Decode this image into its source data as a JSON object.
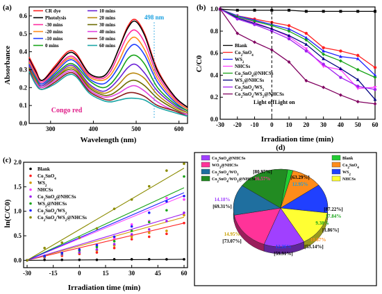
{
  "chart_data": [
    {
      "panel_label": "(a)",
      "type": "line",
      "ylabel": "Absorbance",
      "xlabel": "Wavelength (nm)",
      "xlim": [
        250,
        620
      ],
      "ylim": [
        0.0,
        0.65
      ],
      "xticks": [
        300,
        400,
        500,
        600
      ],
      "yticks": [
        0.0,
        0.1,
        0.2,
        0.3,
        0.4,
        0.5,
        0.6
      ],
      "annotations": [
        {
          "text": "498 nm"
        },
        {
          "text": "Congo red"
        }
      ],
      "legend_placement": "top-left, two columns",
      "series": [
        {
          "name": "CR dye",
          "color": "#ff1f1f",
          "values": [
            0.37,
            0.3,
            0.24,
            0.32,
            0.4,
            0.39,
            0.28,
            0.26,
            0.31,
            0.42,
            0.54,
            0.58,
            0.5,
            0.3,
            0.15,
            0.09
          ]
        },
        {
          "name": "Photolysis",
          "color": "#000000",
          "values": [
            0.36,
            0.29,
            0.24,
            0.31,
            0.39,
            0.38,
            0.28,
            0.26,
            0.31,
            0.42,
            0.53,
            0.57,
            0.49,
            0.29,
            0.15,
            0.09
          ]
        },
        {
          "name": "-30 mins",
          "color": "#ff2aa0",
          "values": [
            0.35,
            0.28,
            0.23,
            0.3,
            0.37,
            0.36,
            0.27,
            0.25,
            0.29,
            0.39,
            0.49,
            0.52,
            0.45,
            0.27,
            0.14,
            0.08
          ]
        },
        {
          "name": "-20 mins",
          "color": "#ff8c1a",
          "values": [
            0.34,
            0.27,
            0.22,
            0.29,
            0.36,
            0.35,
            0.26,
            0.24,
            0.27,
            0.35,
            0.45,
            0.48,
            0.41,
            0.25,
            0.13,
            0.08
          ]
        },
        {
          "name": "-10 mins",
          "color": "#1f3fff",
          "values": [
            0.33,
            0.26,
            0.22,
            0.28,
            0.35,
            0.34,
            0.25,
            0.22,
            0.25,
            0.32,
            0.41,
            0.44,
            0.38,
            0.23,
            0.12,
            0.07
          ]
        },
        {
          "name": "0 mins",
          "color": "#18a41a",
          "values": [
            0.32,
            0.25,
            0.21,
            0.27,
            0.33,
            0.32,
            0.24,
            0.2,
            0.22,
            0.28,
            0.36,
            0.38,
            0.33,
            0.2,
            0.11,
            0.07
          ]
        },
        {
          "name": "10 mins",
          "color": "#6a1fd6",
          "values": [
            0.32,
            0.24,
            0.21,
            0.26,
            0.32,
            0.31,
            0.22,
            0.18,
            0.2,
            0.25,
            0.31,
            0.33,
            0.28,
            0.18,
            0.1,
            0.06
          ]
        },
        {
          "name": "20 mins",
          "color": "#b8860b",
          "values": [
            0.31,
            0.24,
            0.2,
            0.25,
            0.31,
            0.3,
            0.21,
            0.17,
            0.18,
            0.22,
            0.27,
            0.28,
            0.25,
            0.16,
            0.09,
            0.06
          ]
        },
        {
          "name": "30 mins",
          "color": "#6b6b00",
          "values": [
            0.31,
            0.23,
            0.2,
            0.25,
            0.3,
            0.29,
            0.2,
            0.16,
            0.16,
            0.19,
            0.23,
            0.24,
            0.21,
            0.14,
            0.08,
            0.05
          ]
        },
        {
          "name": "40 mins",
          "color": "#e040e0",
          "values": [
            0.3,
            0.23,
            0.2,
            0.24,
            0.29,
            0.28,
            0.19,
            0.15,
            0.15,
            0.17,
            0.2,
            0.21,
            0.18,
            0.12,
            0.07,
            0.05
          ]
        },
        {
          "name": "50 mins",
          "color": "#8b1a1a",
          "values": [
            0.3,
            0.22,
            0.19,
            0.23,
            0.28,
            0.27,
            0.18,
            0.14,
            0.13,
            0.15,
            0.17,
            0.17,
            0.15,
            0.1,
            0.07,
            0.04
          ]
        },
        {
          "name": "60 mins",
          "color": "#1aa5a5",
          "values": [
            0.29,
            0.22,
            0.19,
            0.22,
            0.27,
            0.26,
            0.17,
            0.13,
            0.12,
            0.13,
            0.14,
            0.14,
            0.13,
            0.09,
            0.06,
            0.04
          ]
        }
      ],
      "x": [
        250,
        265,
        280,
        310,
        340,
        360,
        390,
        420,
        440,
        460,
        480,
        498,
        520,
        550,
        590,
        620
      ]
    },
    {
      "panel_label": "(b)",
      "type": "line",
      "ylabel": "C/C0",
      "xlabel": "Irradiation time (min)",
      "x": [
        -30,
        -20,
        -10,
        0,
        10,
        20,
        30,
        40,
        50,
        60
      ],
      "xticks": [
        -30,
        -20,
        -10,
        0,
        10,
        20,
        30,
        40,
        50,
        60
      ],
      "yticks": [
        0.0,
        0.2,
        0.4,
        0.6,
        0.8,
        1.0
      ],
      "xlim": [
        -30,
        60
      ],
      "ylim": [
        0.0,
        1.02
      ],
      "annotations": [
        {
          "text": "Light off"
        },
        {
          "text": "Light on"
        }
      ],
      "legend_placement": "left",
      "series": [
        {
          "name": "Blank",
          "color": "#000000",
          "values": [
            1.0,
            0.99,
            0.99,
            0.99,
            0.99,
            0.98,
            0.98,
            0.98,
            0.98,
            0.98
          ]
        },
        {
          "name": "Co2SnO4",
          "color": "#ff2020",
          "values": [
            1.0,
            0.94,
            0.91,
            0.88,
            0.85,
            0.78,
            0.65,
            0.62,
            0.58,
            0.47
          ]
        },
        {
          "name": "WS2",
          "color": "#2020ff",
          "values": [
            1.0,
            0.94,
            0.9,
            0.86,
            0.82,
            0.74,
            0.62,
            0.57,
            0.55,
            0.4
          ]
        },
        {
          "name": "NHCSs",
          "color": "#ff40ff",
          "values": [
            1.0,
            0.93,
            0.88,
            0.82,
            0.75,
            0.64,
            0.48,
            0.45,
            0.28,
            0.29
          ]
        },
        {
          "name": "Co2SnO4@NHCSs",
          "color": "#18a418",
          "values": [
            1.0,
            0.93,
            0.89,
            0.85,
            0.8,
            0.72,
            0.59,
            0.53,
            0.45,
            0.38
          ]
        },
        {
          "name": "WS2@NHCSs",
          "color": "#000080",
          "values": [
            1.0,
            0.92,
            0.87,
            0.82,
            0.76,
            0.68,
            0.55,
            0.46,
            0.36,
            0.18
          ]
        },
        {
          "name": "Co2SnO4/WS2",
          "color": "#a020f0",
          "values": [
            1.0,
            0.91,
            0.86,
            0.8,
            0.73,
            0.62,
            0.5,
            0.38,
            0.3,
            0.27
          ]
        },
        {
          "name": "Co2SnO4/WS2@NHCSs",
          "color": "#800060",
          "values": [
            1.0,
            0.78,
            0.7,
            0.63,
            0.52,
            0.35,
            0.29,
            0.22,
            0.16,
            0.14
          ]
        }
      ]
    },
    {
      "panel_label": "(c)",
      "type": "scatter",
      "ylabel": "ln(C/C0)",
      "xlabel": "Irradiation time (min)",
      "xticks": [
        -30,
        -15,
        0,
        15,
        30,
        45,
        60
      ],
      "yticks": [
        0.0,
        0.5,
        1.0,
        1.5,
        2.0
      ],
      "xlim": [
        -32,
        62
      ],
      "ylim": [
        -0.15,
        2.0
      ],
      "x": [
        -30,
        -20,
        -10,
        0,
        10,
        20,
        30,
        40,
        50,
        60
      ],
      "legend_placement": "top-left",
      "series": [
        {
          "name": "Blank",
          "color": "#000000",
          "values": [
            0.0,
            0.01,
            0.01,
            0.01,
            0.01,
            0.02,
            0.02,
            0.02,
            0.02,
            0.02
          ],
          "fit": [
            0.0,
            0.02
          ]
        },
        {
          "name": "Co2SnO4",
          "color": "#ff2020",
          "values": [
            0.0,
            0.06,
            0.09,
            0.13,
            0.16,
            0.25,
            0.43,
            0.48,
            0.54,
            0.76
          ],
          "fit": [
            0.0,
            0.76
          ]
        },
        {
          "name": "WS2",
          "color": "#d49a00",
          "values": [
            0.0,
            0.06,
            0.11,
            0.15,
            0.2,
            0.3,
            0.48,
            0.56,
            0.6,
            0.92
          ],
          "fit": [
            0.0,
            0.88
          ]
        },
        {
          "name": "NHCSs",
          "color": "#ff40ff",
          "values": [
            0.0,
            0.07,
            0.13,
            0.2,
            0.29,
            0.45,
            0.73,
            0.8,
            1.27,
            1.24
          ],
          "fit": [
            0.0,
            1.32
          ]
        },
        {
          "name": "Co2SnO4@NHCSs",
          "color": "#a020f0",
          "values": [
            0.0,
            0.07,
            0.12,
            0.16,
            0.22,
            0.33,
            0.53,
            0.63,
            0.8,
            0.97
          ],
          "fit": [
            0.0,
            0.95
          ]
        },
        {
          "name": "WS2@NHCSs",
          "color": "#18a418",
          "values": [
            0.0,
            0.08,
            0.14,
            0.2,
            0.27,
            0.39,
            0.6,
            0.78,
            1.02,
            1.71
          ],
          "fit": [
            0.0,
            1.48
          ]
        },
        {
          "name": "Co2SnO4/WS2",
          "color": "#2020ff",
          "values": [
            0.0,
            0.09,
            0.15,
            0.22,
            0.31,
            0.48,
            0.69,
            0.97,
            1.2,
            1.31
          ],
          "fit": [
            0.0,
            1.38
          ]
        },
        {
          "name": "Co2SnO4/WS2@NHCSs",
          "color": "#8b8b00",
          "values": [
            0.0,
            0.25,
            0.36,
            0.46,
            0.65,
            1.05,
            1.24,
            1.51,
            1.83,
            1.97
          ],
          "fit": [
            0.0,
            1.88
          ]
        }
      ]
    },
    {
      "panel_label": "(d)",
      "type": "pie",
      "legend_placement": "top-left and top-right",
      "slices": [
        {
          "name": "Blank",
          "color": "#22cc33",
          "value": 1.86,
          "label_pct": "[1.86%]"
        },
        {
          "name": "Co2SnO4",
          "color": "#ff8c1a",
          "value": 10.87,
          "label_pct": "10.87%",
          "label_bracket": "[53.14%]"
        },
        {
          "name": "WS2",
          "color": "#2040ff",
          "value": 12.26,
          "label_pct": "12.26%",
          "label_bracket": "[59.91%]"
        },
        {
          "name": "NHCSs",
          "color": "#ffff33",
          "value": 14.95,
          "label_pct": "14.95%",
          "label_bracket": "[73.07%]"
        },
        {
          "name": "Co2SnO4@NHCSs",
          "color": "#a040ff",
          "value": 14.18,
          "label_pct": "14.18%",
          "label_bracket": "[69.31%]"
        },
        {
          "name": "WO3@NHCSs",
          "color": "#ff3399",
          "value": 16.57,
          "label_pct": "16.57%",
          "label_bracket": "[80.97%]"
        },
        {
          "name": "Co2SnO4/WO3",
          "color": "#1f6f9f",
          "value": 12.95,
          "label_pct": "12.95%",
          "label_bracket": "[63.29%]"
        },
        {
          "name": "Co2SnO4/WO3@NHCSs",
          "color": "#228b22",
          "value": 17.84,
          "label_pct": "17.84%",
          "label_bracket": "[87.22%]"
        }
      ],
      "extra_label": "9.38%"
    }
  ]
}
